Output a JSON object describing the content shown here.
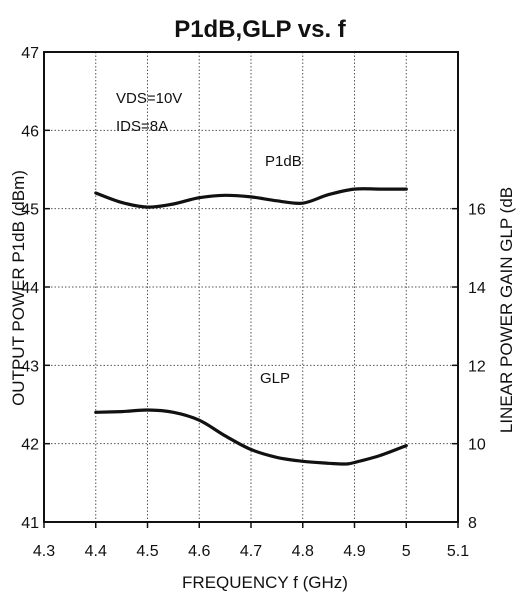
{
  "chart_data": {
    "type": "line",
    "title": "P1dB,GLP vs. f",
    "xlabel": "FREQUENCY f (GHz)",
    "ylabel_left": "OUTPUT POWER P1dB (dBm)",
    "ylabel_right": "LINEAR POWER GAIN GLP (dB",
    "xlim": [
      4.3,
      5.1
    ],
    "ylim_left": [
      41,
      47
    ],
    "ylim_right": [
      8,
      20
    ],
    "x_ticks": [
      "4.3",
      "4.4",
      "4.5",
      "4.6",
      "4.7",
      "4.8",
      "4.9",
      "5",
      "5.1"
    ],
    "y_left_ticks": [
      "41",
      "42",
      "43",
      "44",
      "45",
      "46",
      "47"
    ],
    "y_right_ticks": [
      "8",
      "10",
      "12",
      "14",
      "16"
    ],
    "grid": true,
    "annotations": [
      "VDS=10V",
      "IDS=8A"
    ],
    "series": [
      {
        "name": "P1dB",
        "axis": "left",
        "x": [
          4.4,
          4.45,
          4.5,
          4.55,
          4.6,
          4.65,
          4.7,
          4.75,
          4.8,
          4.85,
          4.9,
          4.95,
          5.0
        ],
        "y": [
          45.2,
          45.08,
          45.02,
          45.06,
          45.14,
          45.17,
          45.15,
          45.1,
          45.07,
          45.18,
          45.25,
          45.25,
          45.25
        ]
      },
      {
        "name": "GLP",
        "axis": "right",
        "x": [
          4.4,
          4.45,
          4.5,
          4.55,
          4.6,
          4.65,
          4.7,
          4.75,
          4.8,
          4.85,
          4.88,
          4.9,
          4.95,
          5.0
        ],
        "y": [
          10.8,
          10.82,
          10.86,
          10.8,
          10.6,
          10.2,
          9.85,
          9.65,
          9.55,
          9.5,
          9.48,
          9.52,
          9.7,
          9.95
        ]
      }
    ],
    "colors": {
      "line": "#111111",
      "grid": "#555555",
      "background": "#ffffff"
    }
  }
}
